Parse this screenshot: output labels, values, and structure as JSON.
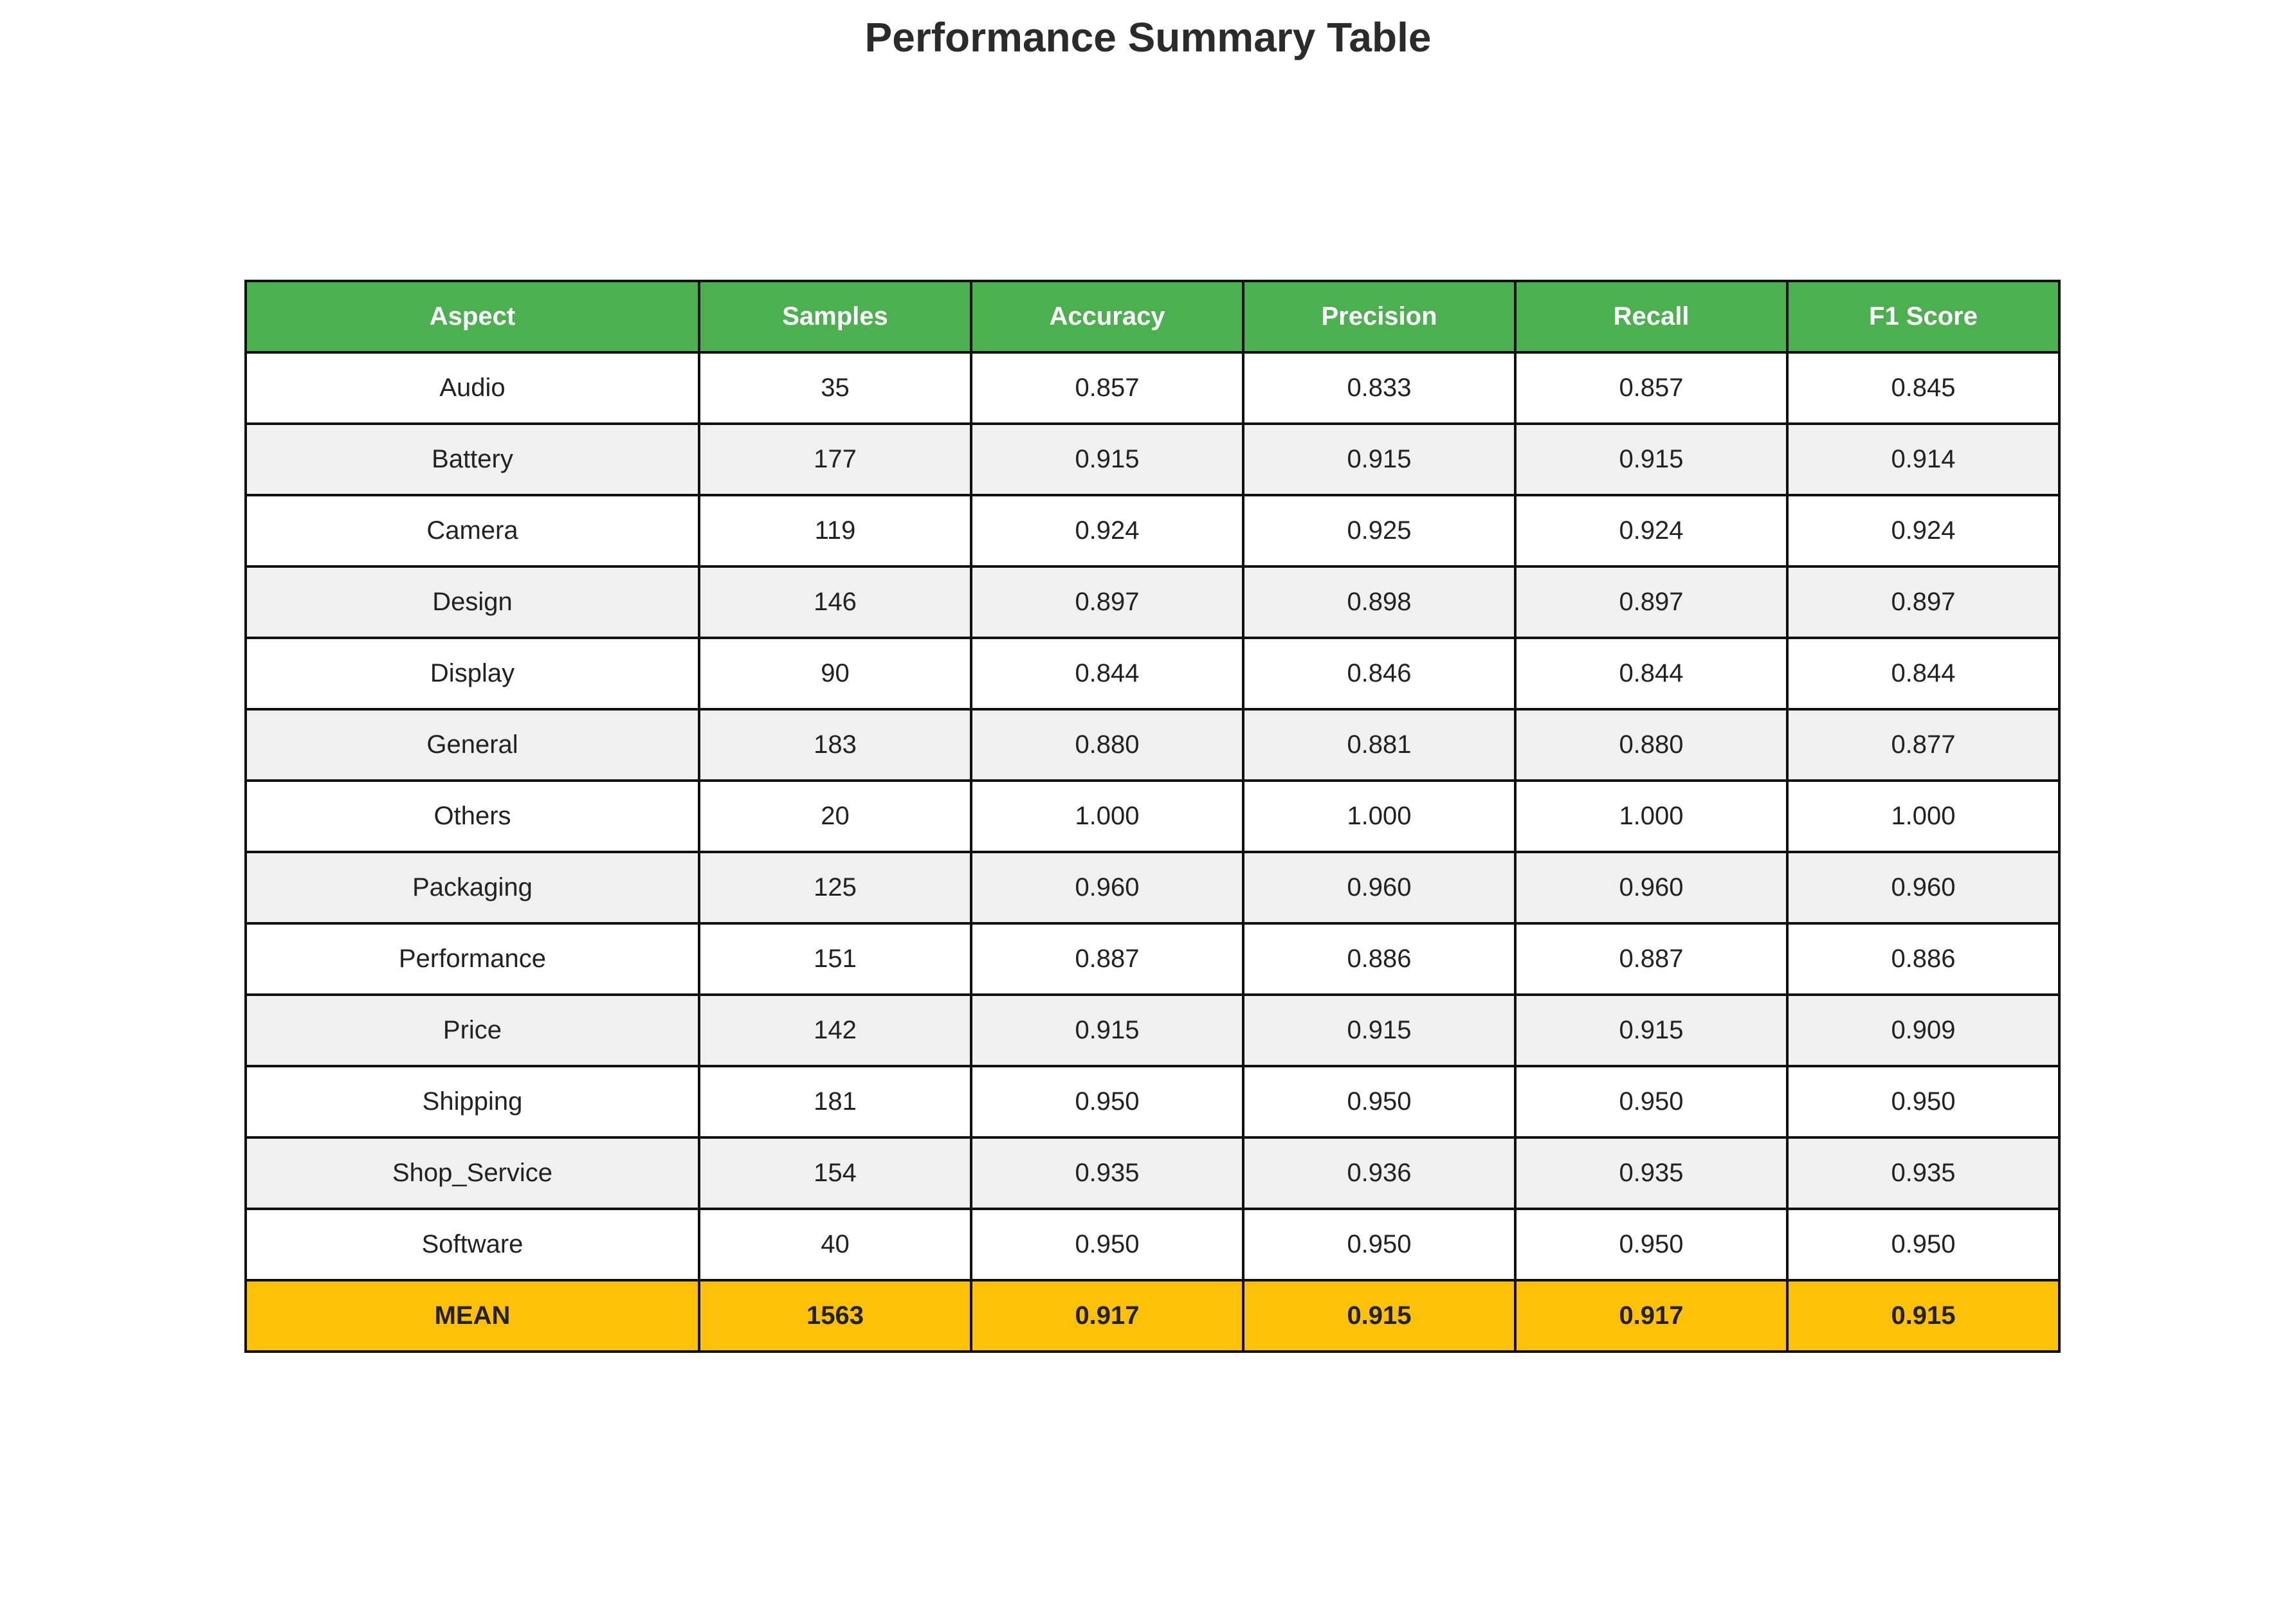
{
  "chart_data": {
    "type": "table",
    "title": "Performance Summary Table",
    "columns": [
      "Aspect",
      "Samples",
      "Accuracy",
      "Precision",
      "Recall",
      "F1 Score"
    ],
    "rows": [
      [
        "Audio",
        "35",
        "0.857",
        "0.833",
        "0.857",
        "0.845"
      ],
      [
        "Battery",
        "177",
        "0.915",
        "0.915",
        "0.915",
        "0.914"
      ],
      [
        "Camera",
        "119",
        "0.924",
        "0.925",
        "0.924",
        "0.924"
      ],
      [
        "Design",
        "146",
        "0.897",
        "0.898",
        "0.897",
        "0.897"
      ],
      [
        "Display",
        "90",
        "0.844",
        "0.846",
        "0.844",
        "0.844"
      ],
      [
        "General",
        "183",
        "0.880",
        "0.881",
        "0.880",
        "0.877"
      ],
      [
        "Others",
        "20",
        "1.000",
        "1.000",
        "1.000",
        "1.000"
      ],
      [
        "Packaging",
        "125",
        "0.960",
        "0.960",
        "0.960",
        "0.960"
      ],
      [
        "Performance",
        "151",
        "0.887",
        "0.886",
        "0.887",
        "0.886"
      ],
      [
        "Price",
        "142",
        "0.915",
        "0.915",
        "0.915",
        "0.909"
      ],
      [
        "Shipping",
        "181",
        "0.950",
        "0.950",
        "0.950",
        "0.950"
      ],
      [
        "Shop_Service",
        "154",
        "0.935",
        "0.936",
        "0.935",
        "0.935"
      ],
      [
        "Software",
        "40",
        "0.950",
        "0.950",
        "0.950",
        "0.950"
      ]
    ],
    "summary_row": [
      "MEAN",
      "1563",
      "0.917",
      "0.915",
      "0.917",
      "0.915"
    ],
    "colors": {
      "header_bg": "#4caf50",
      "header_text": "#ffffff",
      "row_alt_bg": "#f0f0f0",
      "row_bg": "#ffffff",
      "summary_bg": "#ffc107",
      "border": "#111111"
    }
  }
}
